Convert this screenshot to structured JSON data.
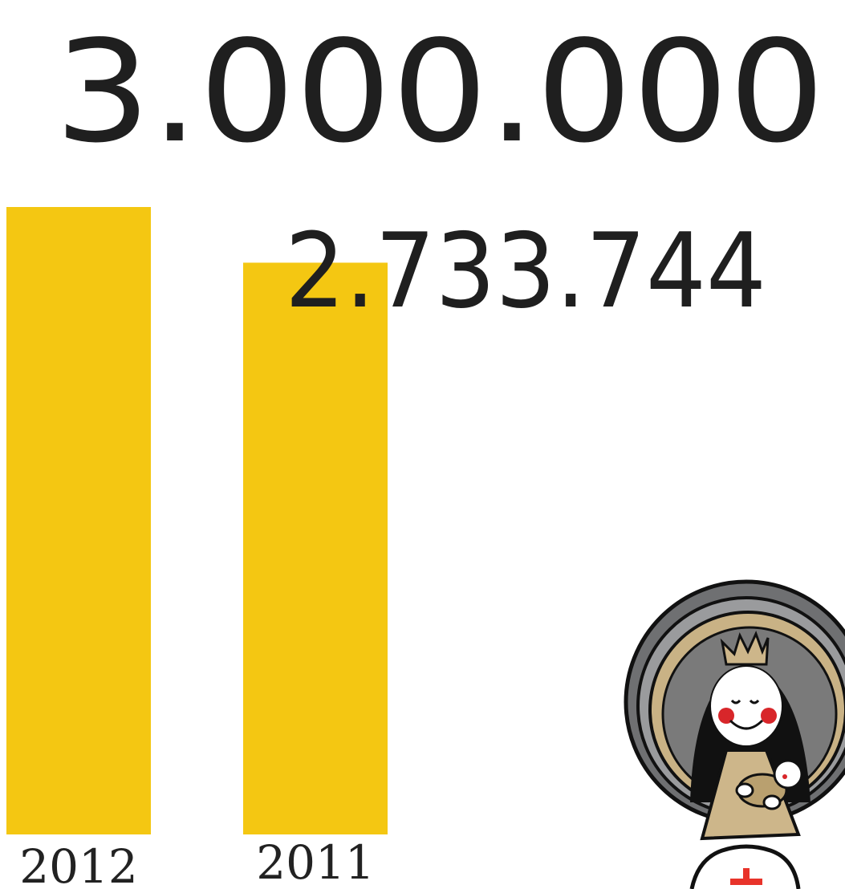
{
  "chart_data": {
    "type": "bar",
    "categories": [
      "2012",
      "2011"
    ],
    "values": [
      3000000,
      2733744
    ],
    "value_labels": [
      "3.000.000",
      "2.733.744"
    ],
    "bar_color": "#F4C712",
    "text_color": "#1f1f1f",
    "grid": false,
    "legend": "none"
  },
  "illustration": {
    "subject": "madonna-with-child-icon",
    "colors": {
      "halo_outer": "#6f7072",
      "halo_inner": "#c9b285",
      "background": "#7a7a7a",
      "robe": "#cdb68a",
      "hair": "#111111",
      "cheeks": "#d8262a",
      "base_mark": "#e8332a"
    }
  }
}
